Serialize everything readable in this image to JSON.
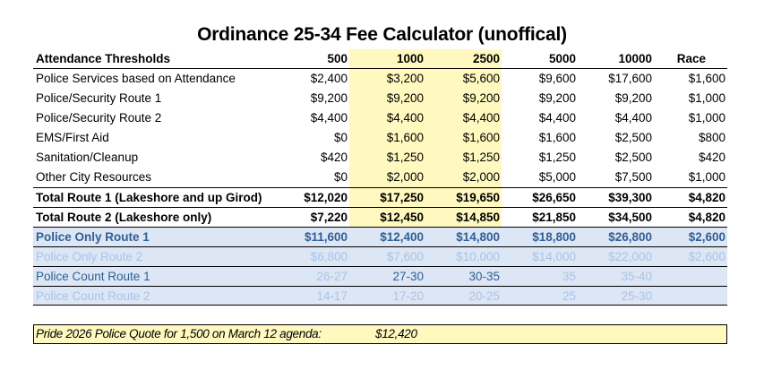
{
  "title": "Ordinance 25-34 Fee Calculator (unoffical)",
  "colors": {
    "highlight_yellow": "#fff9bf",
    "blue_row_bg": "#dce6f4",
    "blue_dark_text": "#2f5f95",
    "blue_light_text": "#a9c4e6"
  },
  "table": {
    "header": {
      "label": "Attendance Thresholds",
      "columns": [
        "500",
        "1000",
        "2500",
        "5000",
        "10000",
        "Race"
      ]
    },
    "highlighted_columns": [
      "1000",
      "2500"
    ],
    "rows": [
      {
        "label": "Police Services based on Attendance",
        "values": [
          "$2,400",
          "$3,200",
          "$5,600",
          "$9,600",
          "$17,600",
          "$1,600"
        ]
      },
      {
        "label": "Police/Security Route 1",
        "values": [
          "$9,200",
          "$9,200",
          "$9,200",
          "$9,200",
          "$9,200",
          "$1,000"
        ]
      },
      {
        "label": "Police/Security Route 2",
        "values": [
          "$4,400",
          "$4,400",
          "$4,400",
          "$4,400",
          "$4,400",
          "$1,000"
        ]
      },
      {
        "label": "EMS/First Aid",
        "values": [
          "$0",
          "$1,600",
          "$1,600",
          "$1,600",
          "$2,500",
          "$800"
        ]
      },
      {
        "label": "Sanitation/Cleanup",
        "values": [
          "$420",
          "$1,250",
          "$1,250",
          "$1,250",
          "$2,500",
          "$420"
        ]
      },
      {
        "label": "Other City Resources",
        "values": [
          "$0",
          "$2,000",
          "$2,000",
          "$5,000",
          "$7,500",
          "$1,000"
        ]
      }
    ],
    "totals": [
      {
        "label": "Total Route 1 (Lakeshore and up Girod)",
        "values": [
          "$12,020",
          "$17,250",
          "$19,650",
          "$26,650",
          "$39,300",
          "$4,820"
        ]
      },
      {
        "label": "Total Route 2 (Lakeshore only)",
        "values": [
          "$7,220",
          "$12,450",
          "$14,850",
          "$21,850",
          "$34,500",
          "$4,820"
        ]
      }
    ],
    "police": [
      {
        "label": "Police Only Route 1",
        "values": [
          "$11,600",
          "$12,400",
          "$14,800",
          "$18,800",
          "$26,800",
          "$2,600"
        ],
        "style": "dark-bold"
      },
      {
        "label": "Police Only Route 2",
        "values": [
          "$6,800",
          "$7,600",
          "$10,000",
          "$14,000",
          "$22,000",
          "$2,600"
        ],
        "style": "light"
      },
      {
        "label": "Police Count Route 1",
        "values": [
          "26-27",
          "27-30",
          "30-35",
          "35",
          "35-40",
          ""
        ],
        "style": "dark-mixed"
      },
      {
        "label": "Police Count Route 2",
        "values": [
          "14-17",
          "17-20",
          "20-25",
          "25",
          "25-30",
          ""
        ],
        "style": "light"
      }
    ]
  },
  "quote": {
    "label": "Pride 2026 Police Quote for 1,500 on March 12 agenda:",
    "value": "$12,420"
  }
}
